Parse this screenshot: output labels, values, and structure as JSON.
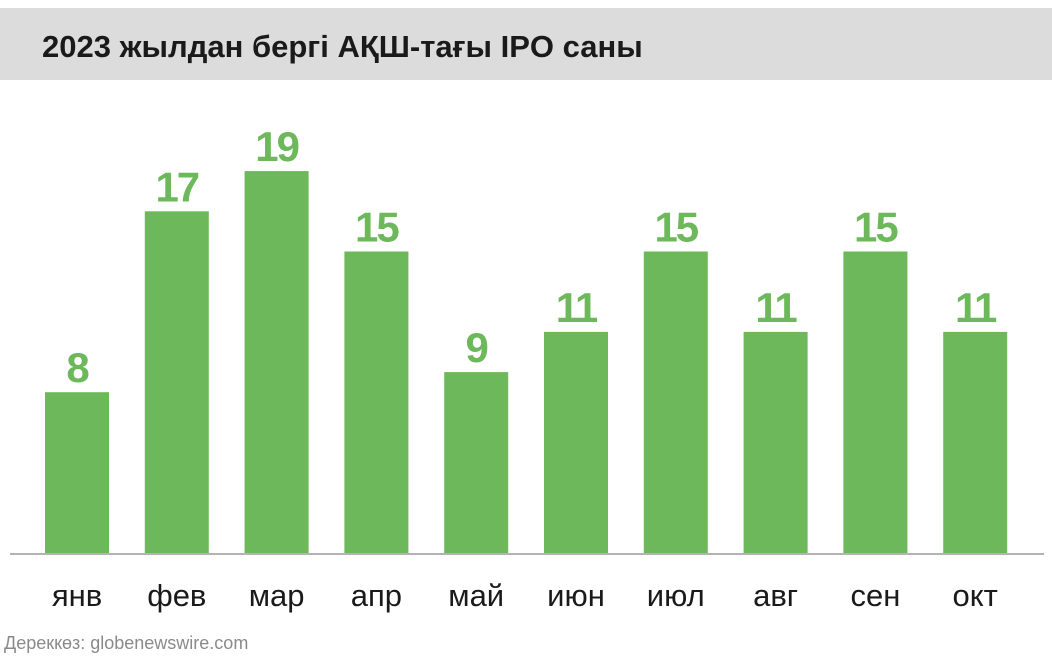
{
  "header": {
    "title": "2023 жылдан бергі АҚШ-тағы IPO саны"
  },
  "footer": {
    "source": "Дереккөз: globenewswire.com"
  },
  "colors": {
    "bar": "#6cb85a",
    "value_label": "#6cb85a",
    "baseline": "#b3b3b3",
    "title_background": "#dcdcdc"
  },
  "chart_data": {
    "type": "bar",
    "title": "2023 жылдан бергі АҚШ-тағы IPO саны",
    "categories": [
      "янв",
      "фев",
      "мар",
      "апр",
      "май",
      "июн",
      "июл",
      "авг",
      "сен",
      "окт"
    ],
    "values": [
      8,
      17,
      19,
      15,
      9,
      11,
      15,
      11,
      15,
      11
    ],
    "xlabel": "",
    "ylabel": "",
    "ylim": [
      0,
      19
    ],
    "grid": false,
    "data_labels": true
  }
}
